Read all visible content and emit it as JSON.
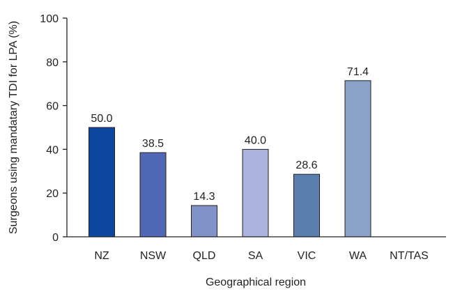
{
  "chart_data": {
    "type": "bar",
    "categories": [
      "NZ",
      "NSW",
      "QLD",
      "SA",
      "VIC",
      "WA",
      "NT/TAS"
    ],
    "values": [
      50.0,
      38.5,
      14.3,
      40.0,
      28.6,
      71.4,
      null
    ],
    "data_labels": [
      "50.0",
      "38.5",
      "14.3",
      "40.0",
      "28.6",
      "71.4",
      ""
    ],
    "colors": [
      "#0d47a1",
      "#5068b5",
      "#8192c8",
      "#aab4dc",
      "#5a7ead",
      "#8aa2c8",
      "#cccccc"
    ],
    "title": "",
    "xlabel": "Geographical region",
    "ylabel": "Surgeons using mandatary TDI for LPA (%)",
    "ylim": [
      0,
      100
    ],
    "yticks": [
      0,
      20,
      40,
      60,
      80,
      100
    ],
    "grid": false
  }
}
